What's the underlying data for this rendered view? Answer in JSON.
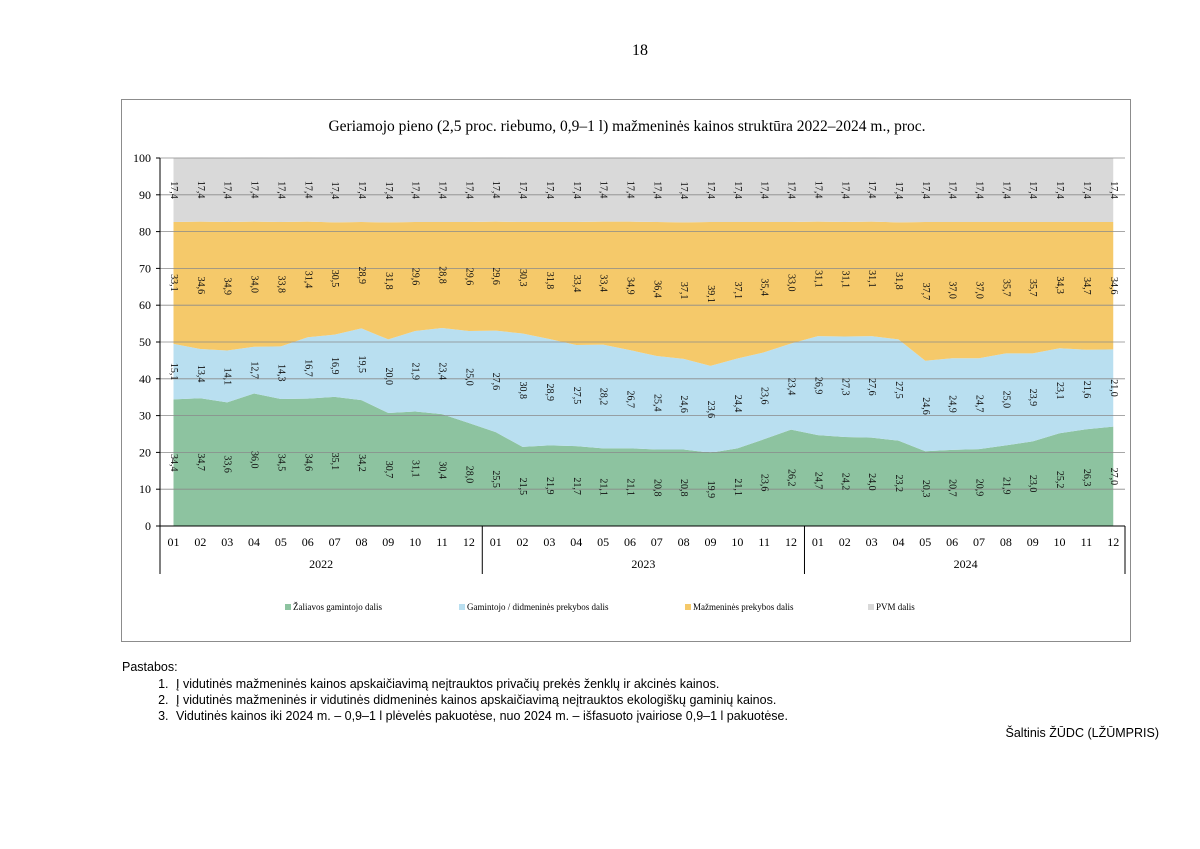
{
  "page": {
    "number": "18"
  },
  "notes": {
    "title": "Pastabos:",
    "items": [
      "Į vidutinės mažmeninės kainos apskaičiavimą neįtrauktos privačių prekės ženklų ir akcinės kainos.",
      "Į vidutinės mažmeninės ir vidutinės didmeninės kainos apskaičiavimą neįtrauktos ekologiškų gaminių kainos.",
      "Vidutinės kainos iki 2024 m. – 0,9–1 l plėvelės pakuotėse, nuo 2024 m. – išfasuoto įvairiose 0,9–1 l pakuotėse."
    ]
  },
  "source": "Šaltinis ŽŪDC (LŽŪMPRIS)",
  "chart_data": {
    "type": "area",
    "stacked": true,
    "title": "Geriamojo pieno (2,5 proc. riebumo, 0,9–1 l) mažmeninės kainos struktūra 2022–2024 m., proc.",
    "xlabel": "",
    "ylabel": "",
    "ylim": [
      0,
      100
    ],
    "yticks": [
      "0",
      "10",
      "20",
      "30",
      "40",
      "50",
      "60",
      "70",
      "80",
      "90",
      "100"
    ],
    "grid": true,
    "legend_position": "bottom",
    "categories": [
      "01",
      "02",
      "03",
      "04",
      "05",
      "06",
      "07",
      "08",
      "09",
      "10",
      "11",
      "12",
      "01",
      "02",
      "03",
      "04",
      "05",
      "06",
      "07",
      "08",
      "09",
      "10",
      "11",
      "12",
      "01",
      "02",
      "03",
      "04",
      "05",
      "06",
      "07",
      "08",
      "09",
      "10",
      "11",
      "12"
    ],
    "years": [
      "2022",
      "2023",
      "2024"
    ],
    "series": [
      {
        "name": "Žaliavos gamintojo dalis",
        "color": "#8dc3a0",
        "values": [
          34.4,
          34.7,
          33.6,
          36.0,
          34.5,
          34.6,
          35.1,
          34.2,
          30.7,
          31.1,
          30.4,
          28.0,
          25.5,
          21.5,
          21.9,
          21.7,
          21.1,
          21.1,
          20.8,
          20.8,
          19.9,
          21.1,
          23.6,
          26.2,
          24.7,
          24.2,
          24.0,
          23.2,
          20.3,
          20.7,
          20.9,
          21.9,
          23.0,
          25.2,
          26.3,
          27.0
        ],
        "labels": [
          "34,4",
          "34,7",
          "33,6",
          "36,0",
          "34,5",
          "34,6",
          "35,1",
          "34,2",
          "30,7",
          "31,1",
          "30,4",
          "28,0",
          "25,5",
          "21,5",
          "21,9",
          "21,7",
          "21,1",
          "21,1",
          "20,8",
          "20,8",
          "19,9",
          "21,1",
          "23,6",
          "26,2",
          "24,7",
          "24,2",
          "24,0",
          "23,2",
          "20,3",
          "20,7",
          "20,9",
          "21,9",
          "23,0",
          "25,2",
          "26,3",
          "27,0"
        ]
      },
      {
        "name": "Gamintojo / didmeninės prekybos dalis",
        "color": "#b9dff0",
        "values": [
          15.1,
          13.4,
          14.1,
          12.7,
          14.3,
          16.7,
          16.9,
          19.5,
          20.0,
          21.9,
          23.4,
          25.0,
          27.6,
          30.8,
          28.9,
          27.5,
          28.2,
          26.7,
          25.4,
          24.6,
          23.6,
          24.4,
          23.6,
          23.4,
          26.9,
          27.3,
          27.6,
          27.5,
          24.6,
          24.9,
          24.7,
          25.0,
          23.9,
          23.1,
          21.6,
          21.0
        ],
        "labels": [
          "15,1",
          "13,4",
          "14,1",
          "12,7",
          "14,3",
          "16,7",
          "16,9",
          "19,5",
          "20,0",
          "21,9",
          "23,4",
          "25,0",
          "27,6",
          "30,8",
          "28,9",
          "27,5",
          "28,2",
          "26,7",
          "25,4",
          "24,6",
          "23,6",
          "24,4",
          "23,6",
          "23,4",
          "26,9",
          "27,3",
          "27,6",
          "27,5",
          "24,6",
          "24,9",
          "24,7",
          "25,0",
          "23,9",
          "23,1",
          "21,6",
          "21,0"
        ]
      },
      {
        "name": "Mažmeninės prekybos dalis",
        "color": "#f5c96a",
        "values": [
          33.1,
          34.6,
          34.9,
          34.0,
          33.8,
          31.4,
          30.5,
          28.9,
          31.8,
          29.6,
          28.8,
          29.6,
          29.6,
          30.3,
          31.8,
          33.4,
          33.4,
          34.9,
          36.4,
          37.1,
          39.1,
          37.1,
          35.4,
          33.0,
          31.1,
          31.1,
          31.1,
          31.8,
          37.7,
          37.0,
          37.0,
          35.7,
          35.7,
          34.3,
          34.7,
          34.6
        ],
        "labels": [
          "33,1",
          "34,6",
          "34,9",
          "34,0",
          "33,8",
          "31,4",
          "30,5",
          "28,9",
          "31,8",
          "29,6",
          "28,8",
          "29,6",
          "29,6",
          "30,3",
          "31,8",
          "33,4",
          "33,4",
          "34,9",
          "36,4",
          "37,1",
          "39,1",
          "37,1",
          "35,4",
          "33,0",
          "31,1",
          "31,1",
          "31,1",
          "31,8",
          "37,7",
          "37,0",
          "37,0",
          "35,7",
          "35,7",
          "34,3",
          "34,7",
          "34,6"
        ]
      },
      {
        "name": "PVM dalis",
        "color": "#d9d9d9",
        "values": [
          17.4,
          17.4,
          17.4,
          17.4,
          17.4,
          17.4,
          17.4,
          17.4,
          17.4,
          17.4,
          17.4,
          17.4,
          17.4,
          17.4,
          17.4,
          17.4,
          17.4,
          17.4,
          17.4,
          17.4,
          17.4,
          17.4,
          17.4,
          17.4,
          17.4,
          17.4,
          17.4,
          17.4,
          17.4,
          17.4,
          17.4,
          17.4,
          17.4,
          17.4,
          17.4,
          17.4
        ],
        "labels": [
          "17,4",
          "17,4",
          "17,4",
          "17,4",
          "17,4",
          "17,4",
          "17,4",
          "17,4",
          "17,4",
          "17,4",
          "17,4",
          "17,4",
          "17,4",
          "17,4",
          "17,4",
          "17,4",
          "17,4",
          "17,4",
          "17,4",
          "17,4",
          "17,4",
          "17,4",
          "17,4",
          "17,4",
          "17,4",
          "17,4",
          "17,4",
          "17,4",
          "17,4",
          "17,4",
          "17,4",
          "17,4",
          "17,4",
          "17,4",
          "17,4",
          "17,4"
        ]
      }
    ]
  }
}
